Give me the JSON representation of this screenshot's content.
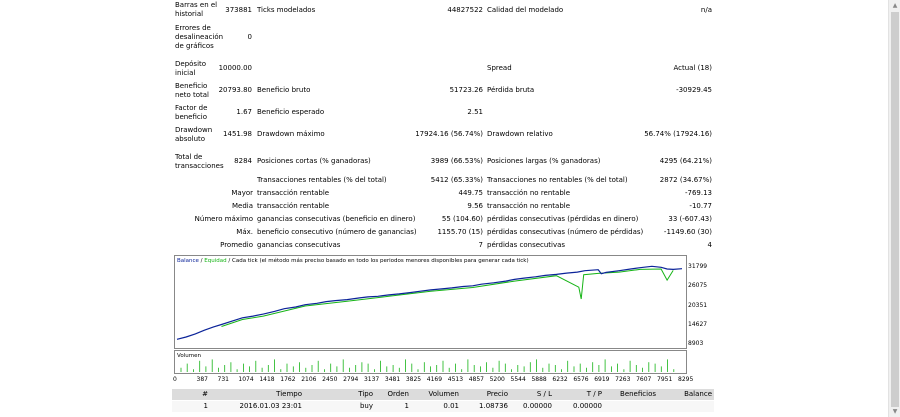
{
  "report": {
    "rows": [
      {
        "l1": "Barras en el",
        "l2": "historial",
        "v1": "373881",
        "m": "Ticks modelados",
        "v2": "44827522",
        "m2": "Calidad del modelado",
        "v3": "n/a"
      },
      {
        "l1": "Errores de",
        "l2": "desalineación",
        "l3": "de gráficos",
        "v1": "0"
      },
      {
        "l1": "Depósito",
        "l2": "inicial",
        "v1": "10000.00",
        "m2": "Spread",
        "v3": "Actual (18)"
      },
      {
        "l1": "Beneficio",
        "l2": "neto total",
        "v1": "20793.80",
        "m": "Beneficio bruto",
        "v2": "51723.26",
        "m2": "Pérdida bruta",
        "v3": "-30929.45"
      },
      {
        "l1": "Factor de",
        "l2": "beneficio",
        "v1": "1.67",
        "m": "Beneficio esperado",
        "v2": "2.51"
      },
      {
        "l1": "Drawdown",
        "l2": "absoluto",
        "v1": "1451.98",
        "m": "Drawdown máximo",
        "v2": "17924.16 (56.74%)",
        "m2": "Drawdown relativo",
        "v3": "56.74% (17924.16)"
      },
      {
        "l1": "Total de",
        "l2": "transacciones",
        "v1": "8284",
        "m": "Posiciones cortas (% ganadoras)",
        "v2": "3989 (66.53%)",
        "m2": "Posiciones largas (% ganadoras)",
        "v3": "4295 (64.21%)"
      },
      {
        "m": "Transacciones rentables (% del total)",
        "v2": "5412 (65.33%)",
        "m2": "Transacciones no rentables (% del total)",
        "v3": "2872 (34.67%)"
      },
      {
        "rl": "Mayor",
        "m": "transacción rentable",
        "v2": "449.75",
        "m2": "transacción no rentable",
        "v3": "-769.13"
      },
      {
        "rl": "Media",
        "m": "transacción rentable",
        "v2": "9.56",
        "m2": "transacción no rentable",
        "v3": "-10.77"
      },
      {
        "rl": "Número máximo",
        "m": "ganancias consecutivas (beneficio en dinero)",
        "v2": "55 (104.60)",
        "m2": "pérdidas consecutivas (pérdidas en dinero)",
        "v3": "33 (-607.43)"
      },
      {
        "rl": "Máx.",
        "m": "beneficio consecutivo (número de ganancias)",
        "v2": "1155.70 (15)",
        "m2": "pérdidas consecutivas (número de pérdidas)",
        "v3": "-1149.60 (30)"
      },
      {
        "rl": "Promedio",
        "m": "ganancias consecutivas",
        "v2": "7",
        "m2": "pérdidas consecutivas",
        "v3": "4"
      }
    ]
  },
  "chart": {
    "legend_balance": "Balance",
    "legend_sep": " / ",
    "legend_equity": "Equidad",
    "legend_rest": " / Cada tick (el método más preciso basado en todo los periodos menores disponibles para generar cada tick)",
    "volume_label": "Volumen",
    "colors": {
      "balance": "#0b2399",
      "equity": "#16b416",
      "volume": "#16b416",
      "text": "#1a1a1a"
    }
  },
  "chart_data": {
    "type": "line",
    "title": "",
    "y_ticks": [
      "31799",
      "26075",
      "20351",
      "14627",
      "8903"
    ],
    "ylim": [
      8903,
      31799
    ],
    "x_ticks": [
      "0",
      "387",
      "731",
      "1074",
      "1418",
      "1762",
      "2106",
      "2450",
      "2794",
      "3137",
      "3481",
      "3825",
      "4169",
      "4513",
      "4857",
      "5200",
      "5544",
      "5888",
      "6232",
      "6576",
      "6919",
      "7263",
      "7607",
      "7951",
      "8295"
    ],
    "xlim": [
      0,
      8295
    ],
    "series": [
      {
        "name": "Balance",
        "values": [
          [
            0,
            10000
          ],
          [
            150,
            10700
          ],
          [
            300,
            11600
          ],
          [
            450,
            12700
          ],
          [
            600,
            13700
          ],
          [
            731,
            14400
          ],
          [
            900,
            15400
          ],
          [
            1074,
            16400
          ],
          [
            1250,
            16900
          ],
          [
            1418,
            17500
          ],
          [
            1600,
            18300
          ],
          [
            1762,
            19100
          ],
          [
            1950,
            19600
          ],
          [
            2106,
            20300
          ],
          [
            2300,
            20700
          ],
          [
            2450,
            21200
          ],
          [
            2600,
            21500
          ],
          [
            2794,
            21800
          ],
          [
            3000,
            22300
          ],
          [
            3137,
            22600
          ],
          [
            3300,
            22800
          ],
          [
            3481,
            23200
          ],
          [
            3650,
            23500
          ],
          [
            3825,
            23900
          ],
          [
            4000,
            24300
          ],
          [
            4169,
            24700
          ],
          [
            4350,
            25000
          ],
          [
            4513,
            25300
          ],
          [
            4700,
            25700
          ],
          [
            4857,
            25900
          ],
          [
            5000,
            26400
          ],
          [
            5200,
            26800
          ],
          [
            5400,
            27300
          ],
          [
            5544,
            27800
          ],
          [
            5700,
            28200
          ],
          [
            5888,
            28600
          ],
          [
            6050,
            29000
          ],
          [
            6232,
            29300
          ],
          [
            6400,
            29700
          ],
          [
            6576,
            30000
          ],
          [
            6700,
            30400
          ],
          [
            6919,
            30700
          ],
          [
            6970,
            29500
          ],
          [
            7050,
            29900
          ],
          [
            7263,
            30400
          ],
          [
            7450,
            30900
          ],
          [
            7607,
            31300
          ],
          [
            7800,
            31700
          ],
          [
            7951,
            31400
          ],
          [
            8050,
            30900
          ],
          [
            8150,
            30800
          ],
          [
            8295,
            31000
          ]
        ]
      },
      {
        "name": "Equidad",
        "values": [
          [
            731,
            13800
          ],
          [
            1074,
            15900
          ],
          [
            1418,
            16900
          ],
          [
            2106,
            19900
          ],
          [
            2794,
            21300
          ],
          [
            3481,
            22800
          ],
          [
            4169,
            24300
          ],
          [
            4857,
            25400
          ],
          [
            5544,
            27300
          ],
          [
            6232,
            28900
          ],
          [
            6600,
            25500
          ],
          [
            6640,
            22000
          ],
          [
            6680,
            29200
          ],
          [
            6919,
            29600
          ],
          [
            7263,
            30000
          ],
          [
            7607,
            30800
          ],
          [
            7951,
            30900
          ],
          [
            8050,
            27600
          ],
          [
            8150,
            30500
          ]
        ]
      }
    ],
    "volume": [
      0.3,
      0.6,
      0.2,
      0.8,
      0.4,
      0.9,
      0.3,
      0.5,
      0.7,
      0.2,
      0.6,
      0.4,
      0.8,
      0.3,
      0.5,
      0.9,
      0.2,
      0.6,
      0.4,
      0.7,
      0.3,
      0.5,
      0.8,
      0.2,
      0.6,
      0.4,
      0.9,
      0.3,
      0.5,
      0.7,
      0.6,
      0.2,
      0.8,
      0.4,
      0.5,
      0.3,
      0.9,
      0.6,
      0.2,
      0.7,
      0.4,
      0.5,
      0.8,
      0.3,
      0.6,
      0.2,
      0.9,
      0.5,
      0.4,
      0.7,
      0.3,
      0.8,
      0.6,
      0.2,
      0.5,
      0.4,
      0.7,
      0.9,
      0.3,
      0.6,
      0.5,
      0.2,
      0.8,
      0.4,
      0.6,
      0.3,
      0.7,
      0.5,
      0.9,
      0.4,
      0.6,
      0.2,
      0.8,
      0.5,
      0.3,
      0.7,
      0.6,
      0.4,
      0.9,
      0.2
    ]
  },
  "deals": {
    "headers": [
      "#",
      "Tiempo",
      "Tipo",
      "Orden",
      "Volumen",
      "Precio",
      "S / L",
      "T / P",
      "Beneficios",
      "Balance"
    ],
    "row": [
      "1",
      "2016.01.03 23:01",
      "buy",
      "1",
      "0.01",
      "1.08736",
      "0.00000",
      "0.00000",
      "",
      ""
    ]
  }
}
